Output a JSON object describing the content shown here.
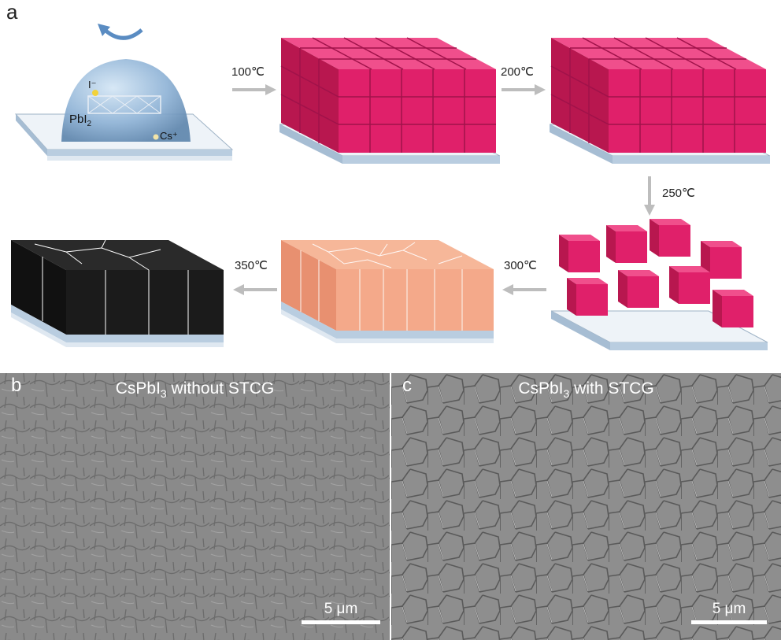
{
  "panel_a": {
    "letter": "a",
    "precursor_labels": {
      "iodide": "I⁻",
      "pbi2": "PbI",
      "pbi2_sub": "2",
      "cs": "Cs⁺"
    },
    "steps": [
      "100℃",
      "200℃",
      "250℃",
      "300℃",
      "350℃"
    ]
  },
  "panel_b": {
    "letter": "b",
    "title_main": "CsPbI",
    "title_sub": "3",
    "title_tail": " without STCG",
    "scale": "5 μm"
  },
  "panel_c": {
    "letter": "c",
    "title_main": "CsPbI",
    "title_sub": "3",
    "title_tail": " with STCG",
    "scale": "5 μm"
  },
  "colors": {
    "cube_pink": "#e0206a",
    "film_peach": "#f4a98a",
    "film_black": "#1b1b1b",
    "substrate": "#c9d6e3",
    "dome_blue": "#8fb3d6",
    "arrow_gray": "#bdbdbd"
  }
}
